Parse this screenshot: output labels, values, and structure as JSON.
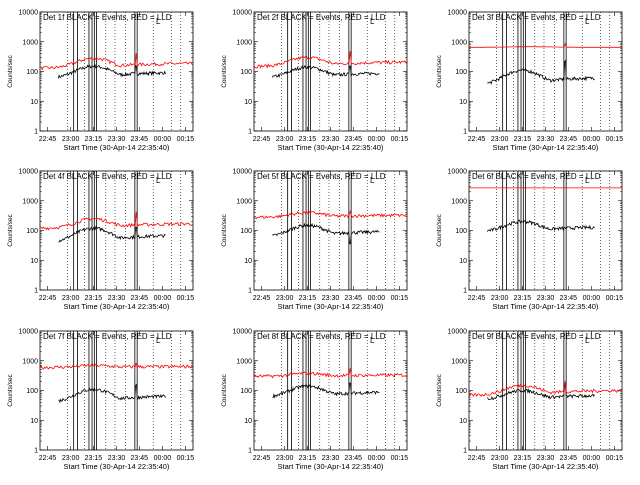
{
  "chart_data": [
    {
      "type": "line",
      "title": "Det 1f BLACK = Events, RED = LLD",
      "xlabel": "Start Time (30-Apr-14 22:35:40)",
      "ylabel": "Counts/sec",
      "ylim": [
        1,
        10000
      ],
      "yscale": "log",
      "xticks": [
        "22:45",
        "23:00",
        "23:15",
        "23:30",
        "23:45",
        "00:00",
        "00:15"
      ],
      "yticks": [
        "1",
        "10",
        "100",
        "1000",
        "10000"
      ],
      "marker": "L",
      "series": [
        {
          "color": "#000000",
          "profile": "bump",
          "base": 60,
          "peak": 150,
          "spike": 2.0
        },
        {
          "color": "#ff0000",
          "profile": "bump",
          "base": 130,
          "peak": 280,
          "spike": 2.5
        }
      ]
    },
    {
      "type": "line",
      "title": "Det 2f BLACK = Events, RED = LLD",
      "xlabel": "Start Time (30-Apr-14 22:35:40)",
      "ylabel": "Counts/sec",
      "ylim": [
        1,
        10000
      ],
      "yscale": "log",
      "xticks": [
        "22:45",
        "23:00",
        "23:15",
        "23:30",
        "23:45",
        "00:00",
        "00:15"
      ],
      "yticks": [
        "1",
        "10",
        "100",
        "1000",
        "10000"
      ],
      "marker": "L",
      "series": [
        {
          "color": "#000000",
          "profile": "bump",
          "base": 60,
          "peak": 140,
          "spike": 2.0
        },
        {
          "color": "#ff0000",
          "profile": "bump",
          "base": 150,
          "peak": 300,
          "spike": 2.5
        }
      ]
    },
    {
      "type": "line",
      "title": "Det 3f BLACK = Events, RED = LLD",
      "xlabel": "Start Time (30-Apr-14 22:35:40)",
      "ylabel": "Counts/sec",
      "ylim": [
        1,
        10000
      ],
      "yscale": "log",
      "xticks": [
        "22:45",
        "23:00",
        "23:15",
        "23:30",
        "23:45",
        "00:00",
        "00:15"
      ],
      "yticks": [
        "1",
        "10",
        "100",
        "1000",
        "10000"
      ],
      "marker": "L",
      "series": [
        {
          "color": "#000000",
          "profile": "bump",
          "base": 35,
          "peak": 110,
          "spike": 4.0
        },
        {
          "color": "#ff0000",
          "profile": "flat",
          "base": 650,
          "peak": 680,
          "spike": 1.3
        }
      ]
    },
    {
      "type": "line",
      "title": "Det 4f BLACK = Events, RED = LLD",
      "xlabel": "Start Time (30-Apr-14 22:35:40)",
      "ylabel": "Counts/sec",
      "ylim": [
        1,
        10000
      ],
      "yscale": "log",
      "xticks": [
        "22:45",
        "23:00",
        "23:15",
        "23:30",
        "23:45",
        "00:00",
        "00:15"
      ],
      "yticks": [
        "1",
        "10",
        "100",
        "1000",
        "10000"
      ],
      "marker": "L",
      "series": [
        {
          "color": "#000000",
          "profile": "bump",
          "base": 40,
          "peak": 120,
          "spike": 2.0
        },
        {
          "color": "#ff0000",
          "profile": "bump",
          "base": 120,
          "peak": 250,
          "spike": 2.5
        }
      ]
    },
    {
      "type": "line",
      "title": "Det 5f BLACK = Events, RED = LLD",
      "xlabel": "Start Time (30-Apr-14 22:35:40)",
      "ylabel": "Counts/sec",
      "ylim": [
        1,
        10000
      ],
      "yscale": "log",
      "xticks": [
        "22:45",
        "23:00",
        "23:15",
        "23:30",
        "23:45",
        "00:00",
        "00:15"
      ],
      "yticks": [
        "1",
        "10",
        "100",
        "1000",
        "10000"
      ],
      "marker": "L",
      "series": [
        {
          "color": "#000000",
          "profile": "bump",
          "base": 60,
          "peak": 150,
          "spike": 0.6
        },
        {
          "color": "#ff0000",
          "profile": "bump",
          "base": 280,
          "peak": 400,
          "spike": 1.3
        }
      ]
    },
    {
      "type": "line",
      "title": "Det 6f BLACK = Events, RED = LLD",
      "xlabel": "Start Time (30-Apr-14 22:35:40)",
      "ylabel": "Counts/sec",
      "ylim": [
        1,
        10000
      ],
      "yscale": "log",
      "xticks": [
        "22:45",
        "23:00",
        "23:15",
        "23:30",
        "23:45",
        "00:00",
        "00:15"
      ],
      "yticks": [
        "1",
        "10",
        "100",
        "1000",
        "10000"
      ],
      "marker": "L",
      "series": [
        {
          "color": "#000000",
          "profile": "bump",
          "base": 90,
          "peak": 200,
          "spike": 1.0
        },
        {
          "color": "#ff0000",
          "profile": "flat",
          "base": 2700,
          "peak": 2700,
          "spike": 1.0
        }
      ]
    },
    {
      "type": "line",
      "title": "Det 7f BLACK = Events, RED = LLD",
      "xlabel": "Start Time (30-Apr-14 22:35:40)",
      "ylabel": "Counts/sec",
      "ylim": [
        1,
        10000
      ],
      "yscale": "log",
      "xticks": [
        "22:45",
        "23:00",
        "23:15",
        "23:30",
        "23:45",
        "00:00",
        "00:15"
      ],
      "yticks": [
        "1",
        "10",
        "100",
        "1000",
        "10000"
      ],
      "marker": "L",
      "series": [
        {
          "color": "#000000",
          "profile": "bump",
          "base": 40,
          "peak": 110,
          "spike": 2.5
        },
        {
          "color": "#ff0000",
          "profile": "bump",
          "base": 600,
          "peak": 700,
          "spike": 1.4
        }
      ]
    },
    {
      "type": "line",
      "title": "Det 8f BLACK = Events, RED = LLD",
      "xlabel": "Start Time (30-Apr-14 22:35:40)",
      "ylabel": "Counts/sec",
      "ylim": [
        1,
        10000
      ],
      "yscale": "log",
      "xticks": [
        "22:45",
        "23:00",
        "23:15",
        "23:30",
        "23:45",
        "00:00",
        "00:15"
      ],
      "yticks": [
        "1",
        "10",
        "100",
        "1000",
        "10000"
      ],
      "marker": "L",
      "series": [
        {
          "color": "#000000",
          "profile": "bump",
          "base": 60,
          "peak": 140,
          "spike": 2.0
        },
        {
          "color": "#ff0000",
          "profile": "bump",
          "base": 300,
          "peak": 380,
          "spike": 1.6
        }
      ]
    },
    {
      "type": "line",
      "title": "Det 9f BLACK = Events, RED = LLD",
      "xlabel": "Start Time (30-Apr-14 22:35:40)",
      "ylabel": "Counts/sec",
      "ylim": [
        1,
        10000
      ],
      "yscale": "log",
      "xticks": [
        "22:45",
        "23:00",
        "23:15",
        "23:30",
        "23:45",
        "00:00",
        "00:15"
      ],
      "yticks": [
        "1",
        "10",
        "100",
        "1000",
        "10000"
      ],
      "marker": "L",
      "series": [
        {
          "color": "#000000",
          "profile": "bump",
          "base": 50,
          "peak": 100,
          "spike": 2.5
        },
        {
          "color": "#ff0000",
          "profile": "bump",
          "base": 70,
          "peak": 150,
          "spike": 2.5
        }
      ]
    }
  ]
}
